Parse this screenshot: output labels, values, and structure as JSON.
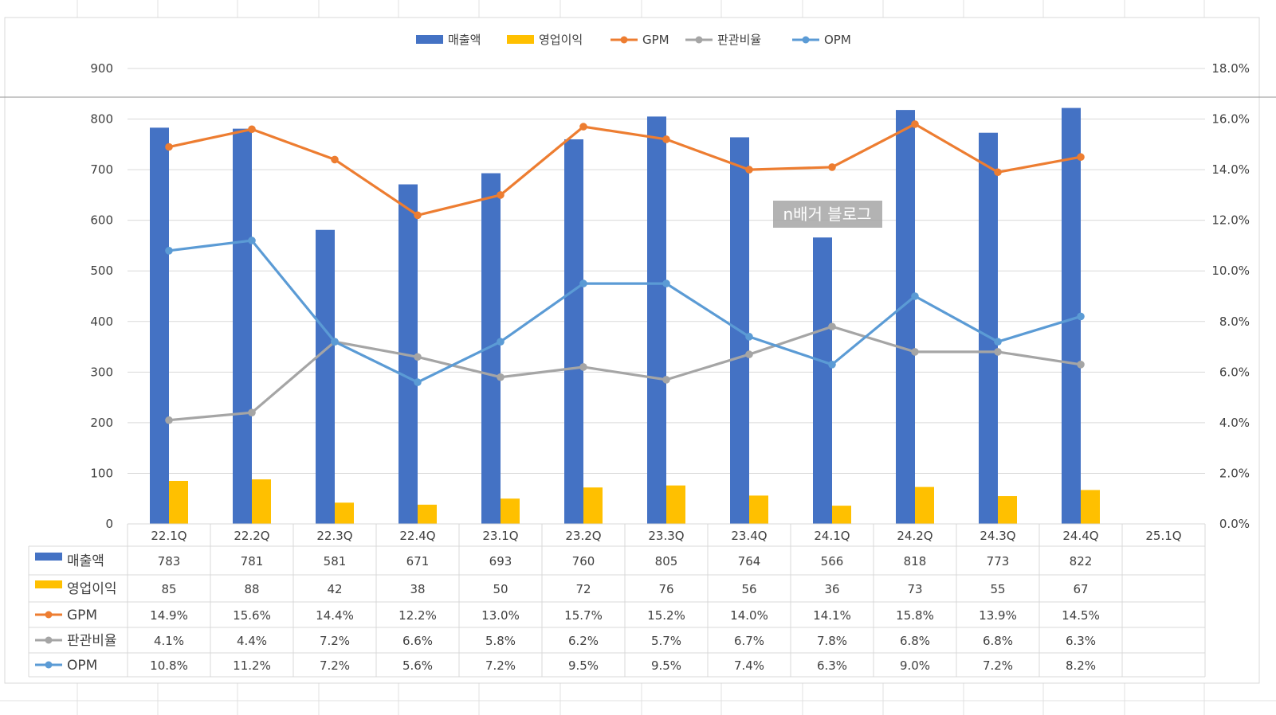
{
  "watermark": "n배거 블로그",
  "colors": {
    "revenue": "#4472C4",
    "op_income": "#FFC000",
    "gpm": "#ED7D31",
    "sga": "#A5A5A5",
    "opm": "#5B9BD5",
    "grid": "#D9D9D9",
    "text": "#404040"
  },
  "chart_data": {
    "type": "bar",
    "title": "",
    "legend_position": "top",
    "categories": [
      "22.1Q",
      "22.2Q",
      "22.3Q",
      "22.4Q",
      "23.1Q",
      "23.2Q",
      "23.3Q",
      "23.4Q",
      "24.1Q",
      "24.2Q",
      "24.3Q",
      "24.4Q",
      "25.1Q"
    ],
    "y_left": {
      "min": 0,
      "max": 900,
      "step": 100,
      "ticks": [
        "0",
        "100",
        "200",
        "300",
        "400",
        "500",
        "600",
        "700",
        "800",
        "900"
      ]
    },
    "y_right": {
      "min": 0,
      "max": 18,
      "step": 2,
      "ticks": [
        "0.0%",
        "2.0%",
        "4.0%",
        "6.0%",
        "8.0%",
        "10.0%",
        "12.0%",
        "14.0%",
        "16.0%",
        "18.0%"
      ]
    },
    "series": [
      {
        "key": "revenue",
        "name": "매출액",
        "kind": "bar",
        "axis": "left",
        "values": [
          783,
          781,
          581,
          671,
          693,
          760,
          805,
          764,
          566,
          818,
          773,
          822,
          null
        ],
        "labels": [
          "783",
          "781",
          "581",
          "671",
          "693",
          "760",
          "805",
          "764",
          "566",
          "818",
          "773",
          "822",
          ""
        ]
      },
      {
        "key": "op_income",
        "name": "영업이익",
        "kind": "bar",
        "axis": "left",
        "values": [
          85,
          88,
          42,
          38,
          50,
          72,
          76,
          56,
          36,
          73,
          55,
          67,
          null
        ],
        "labels": [
          "85",
          "88",
          "42",
          "38",
          "50",
          "72",
          "76",
          "56",
          "36",
          "73",
          "55",
          "67",
          ""
        ]
      },
      {
        "key": "gpm",
        "name": "GPM",
        "kind": "line",
        "axis": "right",
        "values": [
          14.9,
          15.6,
          14.4,
          12.2,
          13.0,
          15.7,
          15.2,
          14.0,
          14.1,
          15.8,
          13.9,
          14.5,
          null
        ],
        "labels": [
          "14.9%",
          "15.6%",
          "14.4%",
          "12.2%",
          "13.0%",
          "15.7%",
          "15.2%",
          "14.0%",
          "14.1%",
          "15.8%",
          "13.9%",
          "14.5%",
          ""
        ]
      },
      {
        "key": "sga",
        "name": "판관비율",
        "kind": "line",
        "axis": "right",
        "values": [
          4.1,
          4.4,
          7.2,
          6.6,
          5.8,
          6.2,
          5.7,
          6.7,
          7.8,
          6.8,
          6.8,
          6.3,
          null
        ],
        "labels": [
          "4.1%",
          "4.4%",
          "7.2%",
          "6.6%",
          "5.8%",
          "6.2%",
          "5.7%",
          "6.7%",
          "7.8%",
          "6.8%",
          "6.8%",
          "6.3%",
          ""
        ]
      },
      {
        "key": "opm",
        "name": "OPM",
        "kind": "line",
        "axis": "right",
        "values": [
          10.8,
          11.2,
          7.2,
          5.6,
          7.2,
          9.5,
          9.5,
          7.4,
          6.3,
          9.0,
          7.2,
          8.2,
          null
        ],
        "labels": [
          "10.8%",
          "11.2%",
          "7.2%",
          "5.6%",
          "7.2%",
          "9.5%",
          "9.5%",
          "7.4%",
          "6.3%",
          "9.0%",
          "7.2%",
          "8.2%",
          ""
        ]
      }
    ]
  }
}
